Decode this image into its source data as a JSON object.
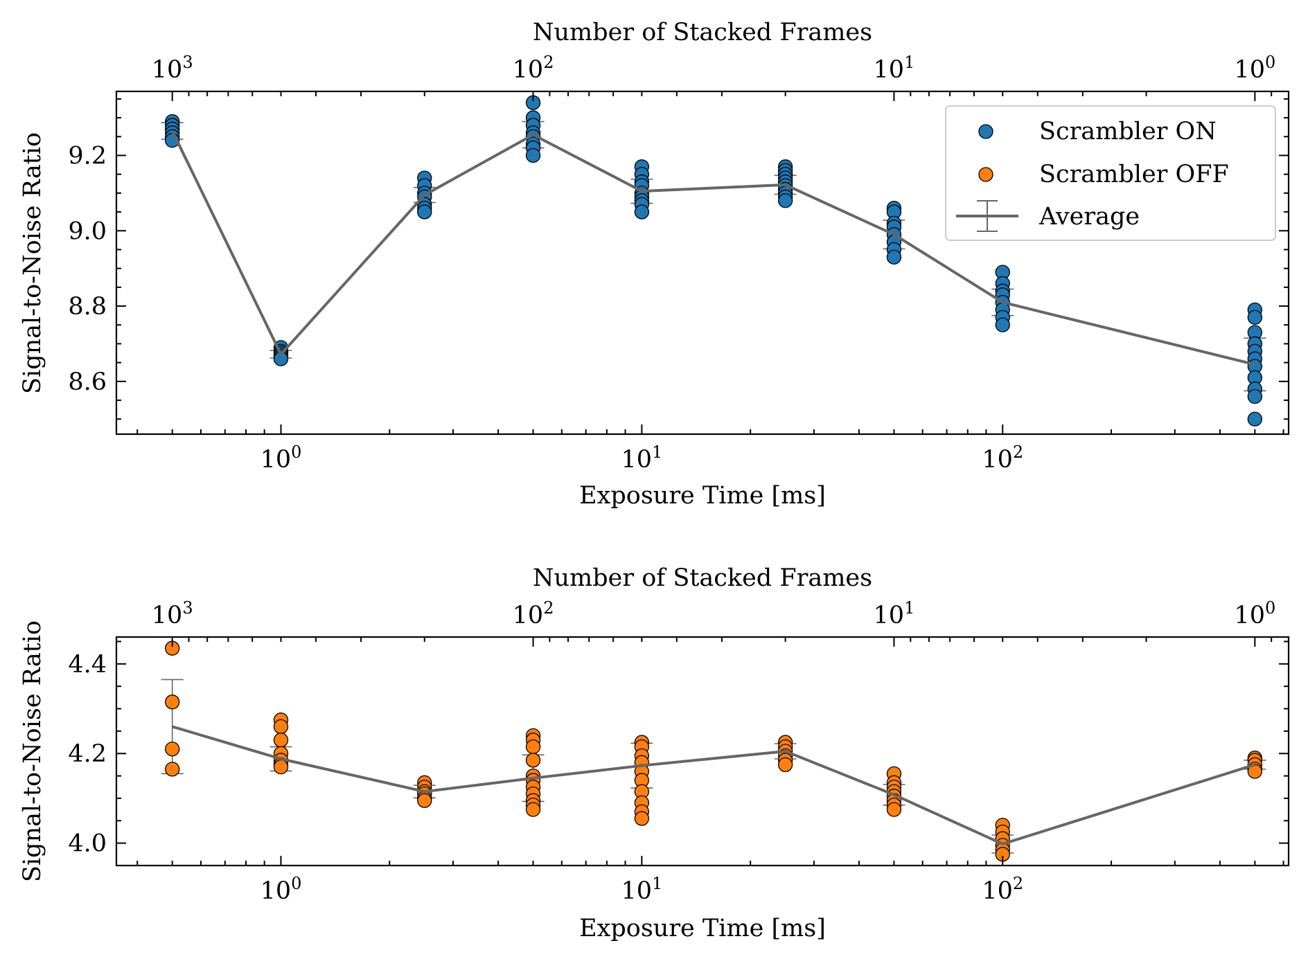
{
  "chart_data": [
    {
      "type": "scatter",
      "xscale": "log",
      "xlabel": "Exposure Time [ms]",
      "ylabel": "Signal-to-Noise Ratio",
      "secondary_xlabel": "Number of Stacked Frames",
      "secondary_xscale": "log",
      "secondary_x_relation": "frames = 500 / exposure_time_ms",
      "xlim": [
        0.35,
        620
      ],
      "ylim": [
        8.46,
        9.37
      ],
      "yticks": [
        8.6,
        8.8,
        9.0,
        9.2
      ],
      "xtick_labels": [
        {
          "base": "10",
          "exp": "0",
          "value": 1
        },
        {
          "base": "10",
          "exp": "1",
          "value": 10
        },
        {
          "base": "10",
          "exp": "2",
          "value": 100
        }
      ],
      "top_tick_labels": [
        {
          "base": "10",
          "exp": "3",
          "value": 1000
        },
        {
          "base": "10",
          "exp": "2",
          "value": 100
        },
        {
          "base": "10",
          "exp": "1",
          "value": 10
        },
        {
          "base": "10",
          "exp": "0",
          "value": 1
        }
      ],
      "legend": {
        "position": "upper right",
        "entries": [
          "Scrambler ON",
          "Scrambler OFF",
          "Average"
        ]
      },
      "series": [
        {
          "name": "Scrambler ON",
          "color": "#1f77b4",
          "kind": "points",
          "points": [
            [
              0.5,
              9.29
            ],
            [
              0.5,
              9.28
            ],
            [
              0.5,
              9.27
            ],
            [
              0.5,
              9.26
            ],
            [
              0.5,
              9.25
            ],
            [
              0.5,
              9.24
            ],
            [
              1,
              8.69
            ],
            [
              1,
              8.68
            ],
            [
              1,
              8.675
            ],
            [
              1,
              8.67
            ],
            [
              1,
              8.665
            ],
            [
              1,
              8.66
            ],
            [
              2.5,
              9.14
            ],
            [
              2.5,
              9.12
            ],
            [
              2.5,
              9.1
            ],
            [
              2.5,
              9.09
            ],
            [
              2.5,
              9.07
            ],
            [
              2.5,
              9.06
            ],
            [
              2.5,
              9.05
            ],
            [
              5,
              9.34
            ],
            [
              5,
              9.3
            ],
            [
              5,
              9.28
            ],
            [
              5,
              9.26
            ],
            [
              5,
              9.25
            ],
            [
              5,
              9.23
            ],
            [
              5,
              9.22
            ],
            [
              5,
              9.2
            ],
            [
              10,
              9.17
            ],
            [
              10,
              9.15
            ],
            [
              10,
              9.13
            ],
            [
              10,
              9.12
            ],
            [
              10,
              9.1
            ],
            [
              10,
              9.09
            ],
            [
              10,
              9.08
            ],
            [
              10,
              9.07
            ],
            [
              10,
              9.05
            ],
            [
              25,
              9.17
            ],
            [
              25,
              9.16
            ],
            [
              25,
              9.15
            ],
            [
              25,
              9.14
            ],
            [
              25,
              9.13
            ],
            [
              25,
              9.12
            ],
            [
              25,
              9.11
            ],
            [
              25,
              9.1
            ],
            [
              25,
              9.09
            ],
            [
              25,
              9.08
            ],
            [
              50,
              9.06
            ],
            [
              50,
              9.05
            ],
            [
              50,
              9.02
            ],
            [
              50,
              9.01
            ],
            [
              50,
              8.99
            ],
            [
              50,
              8.97
            ],
            [
              50,
              8.95
            ],
            [
              50,
              8.93
            ],
            [
              100,
              8.89
            ],
            [
              100,
              8.86
            ],
            [
              100,
              8.84
            ],
            [
              100,
              8.83
            ],
            [
              100,
              8.81
            ],
            [
              100,
              8.79
            ],
            [
              100,
              8.77
            ],
            [
              100,
              8.75
            ],
            [
              500,
              8.79
            ],
            [
              500,
              8.77
            ],
            [
              500,
              8.73
            ],
            [
              500,
              8.7
            ],
            [
              500,
              8.68
            ],
            [
              500,
              8.66
            ],
            [
              500,
              8.64
            ],
            [
              500,
              8.61
            ],
            [
              500,
              8.58
            ],
            [
              500,
              8.56
            ],
            [
              500,
              8.5
            ]
          ]
        },
        {
          "name": "Average",
          "color": "#666666",
          "kind": "errorbar",
          "x": [
            0.5,
            1,
            2.5,
            5,
            10,
            25,
            50,
            100,
            500
          ],
          "y": [
            9.265,
            8.672,
            9.095,
            9.255,
            9.105,
            9.122,
            8.99,
            8.81,
            8.645
          ],
          "yerr": [
            0.022,
            0.01,
            0.02,
            0.035,
            0.032,
            0.025,
            0.038,
            0.035,
            0.07
          ]
        }
      ]
    },
    {
      "type": "scatter",
      "xscale": "log",
      "xlabel": "Exposure Time [ms]",
      "ylabel": "Signal-to-Noise Ratio",
      "secondary_xlabel": "Number of Stacked Frames",
      "secondary_xscale": "log",
      "secondary_x_relation": "frames = 500 / exposure_time_ms",
      "xlim": [
        0.35,
        620
      ],
      "ylim": [
        3.95,
        4.46
      ],
      "yticks": [
        4.0,
        4.2,
        4.4
      ],
      "xtick_labels": [
        {
          "base": "10",
          "exp": "0",
          "value": 1
        },
        {
          "base": "10",
          "exp": "1",
          "value": 10
        },
        {
          "base": "10",
          "exp": "2",
          "value": 100
        }
      ],
      "top_tick_labels": [
        {
          "base": "10",
          "exp": "3",
          "value": 1000
        },
        {
          "base": "10",
          "exp": "2",
          "value": 100
        },
        {
          "base": "10",
          "exp": "1",
          "value": 10
        },
        {
          "base": "10",
          "exp": "0",
          "value": 1
        }
      ],
      "series": [
        {
          "name": "Scrambler OFF",
          "color": "#ff7f0e",
          "kind": "points",
          "points": [
            [
              0.5,
              4.435
            ],
            [
              0.5,
              4.315
            ],
            [
              0.5,
              4.21
            ],
            [
              0.5,
              4.165
            ],
            [
              1,
              4.275
            ],
            [
              1,
              4.26
            ],
            [
              1,
              4.23
            ],
            [
              1,
              4.2
            ],
            [
              1,
              4.185
            ],
            [
              1,
              4.175
            ],
            [
              1,
              4.17
            ],
            [
              2.5,
              4.135
            ],
            [
              2.5,
              4.125
            ],
            [
              2.5,
              4.115
            ],
            [
              2.5,
              4.11
            ],
            [
              2.5,
              4.1
            ],
            [
              2.5,
              4.095
            ],
            [
              5,
              4.24
            ],
            [
              5,
              4.23
            ],
            [
              5,
              4.215
            ],
            [
              5,
              4.185
            ],
            [
              5,
              4.15
            ],
            [
              5,
              4.14
            ],
            [
              5,
              4.125
            ],
            [
              5,
              4.11
            ],
            [
              5,
              4.095
            ],
            [
              5,
              4.085
            ],
            [
              5,
              4.075
            ],
            [
              10,
              4.225
            ],
            [
              10,
              4.215
            ],
            [
              10,
              4.195
            ],
            [
              10,
              4.18
            ],
            [
              10,
              4.16
            ],
            [
              10,
              4.14
            ],
            [
              10,
              4.115
            ],
            [
              10,
              4.09
            ],
            [
              10,
              4.07
            ],
            [
              10,
              4.055
            ],
            [
              25,
              4.225
            ],
            [
              25,
              4.215
            ],
            [
              25,
              4.205
            ],
            [
              25,
              4.195
            ],
            [
              25,
              4.185
            ],
            [
              25,
              4.175
            ],
            [
              50,
              4.155
            ],
            [
              50,
              4.135
            ],
            [
              50,
              4.125
            ],
            [
              50,
              4.115
            ],
            [
              50,
              4.105
            ],
            [
              50,
              4.095
            ],
            [
              50,
              4.085
            ],
            [
              50,
              4.075
            ],
            [
              100,
              4.04
            ],
            [
              100,
              4.025
            ],
            [
              100,
              4.01
            ],
            [
              100,
              3.995
            ],
            [
              100,
              3.985
            ],
            [
              100,
              3.975
            ],
            [
              500,
              4.19
            ],
            [
              500,
              4.185
            ],
            [
              500,
              4.175
            ],
            [
              500,
              4.165
            ],
            [
              500,
              4.16
            ]
          ]
        },
        {
          "name": "Average",
          "color": "#666666",
          "kind": "errorbar",
          "x": [
            0.5,
            1,
            2.5,
            5,
            10,
            25,
            50,
            100,
            500
          ],
          "y": [
            4.26,
            4.188,
            4.115,
            4.145,
            4.173,
            4.205,
            4.108,
            3.998,
            4.175
          ],
          "yerr": [
            0.105,
            0.027,
            0.014,
            0.052,
            0.05,
            0.017,
            0.023,
            0.02,
            0.01
          ]
        }
      ]
    }
  ]
}
